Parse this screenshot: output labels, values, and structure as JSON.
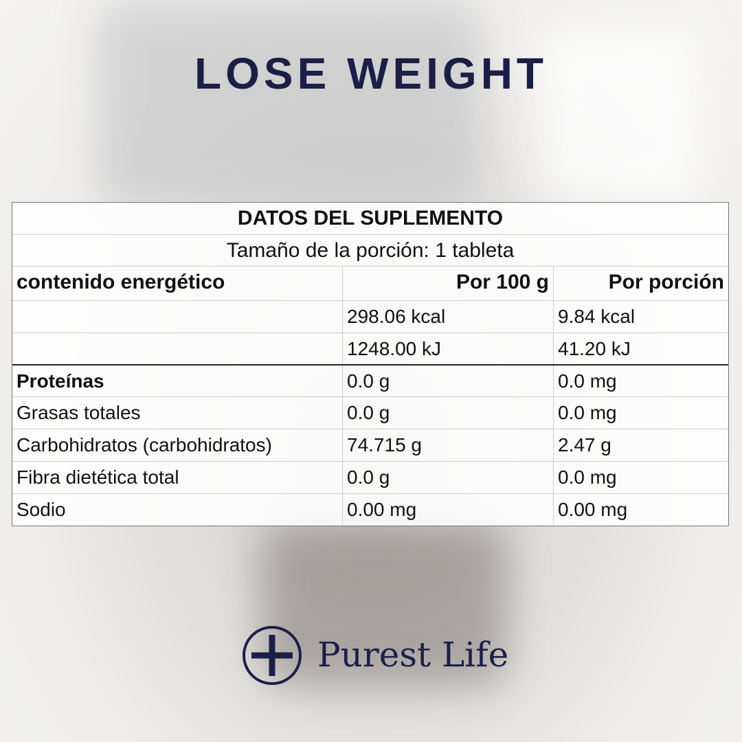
{
  "header": {
    "title": "LOSE WEIGHT"
  },
  "table": {
    "title": "DATOS DEL SUPLEMENTO",
    "serving": "Tamaño de la porción: 1 tableta",
    "columns": [
      "contenido energético",
      "Por 100 g",
      "Por porción"
    ],
    "energy_rows": [
      [
        "298.06 kcal",
        "9.84 kcal"
      ],
      [
        "1248.00 kJ",
        "41.20 kJ"
      ]
    ],
    "nutrient_rows": [
      [
        "Proteínas",
        "0.0 g",
        "0.0 mg"
      ],
      [
        "Grasas totales",
        "0.0 g",
        "0.0 mg"
      ],
      [
        "Carbohidratos (carbohidratos)",
        "74.715 g",
        "2.47 g"
      ],
      [
        "Fibra dietética total",
        "0.0 g",
        "0.0 mg"
      ],
      [
        "Sodio",
        "0.00 mg",
        "0.00 mg"
      ]
    ]
  },
  "logo": {
    "text": "Purest Life"
  }
}
